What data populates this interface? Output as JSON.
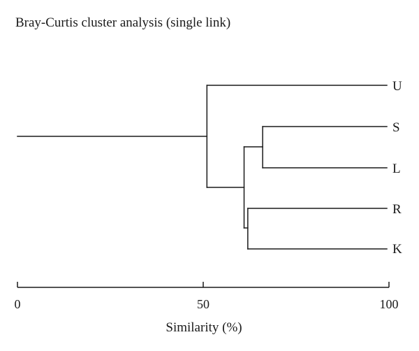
{
  "chart_data": {
    "type": "dendrogram",
    "title": "Bray-Curtis cluster analysis (single link)",
    "xlabel": "Similarity (%)",
    "xlim": [
      0,
      100
    ],
    "xticks": [
      0,
      50,
      100
    ],
    "tick_labels": [
      "0",
      "50",
      "100"
    ],
    "leaves": [
      "U",
      "S",
      "L",
      "R",
      "K"
    ],
    "merges": [
      {
        "members": [
          "S",
          "L"
        ],
        "similarity": 66
      },
      {
        "members": [
          "R",
          "K"
        ],
        "similarity": 62
      },
      {
        "members": [
          "S-L",
          "R-K"
        ],
        "similarity": 61
      },
      {
        "members": [
          "U",
          "S-L-R-K"
        ],
        "similarity": 51
      }
    ],
    "root_similarity": 0
  }
}
